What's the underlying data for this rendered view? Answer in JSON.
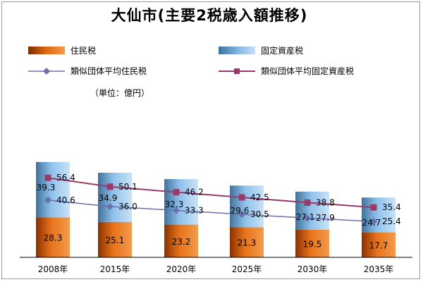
{
  "title": "大仙市(主要2税歳入額推移)",
  "unit_label": "（単位：億円）",
  "legend": {
    "resident_tax": "住民税",
    "fixed_asset_tax": "固定資産税",
    "similar_resident": "類似団体平均住民税",
    "similar_fixed": "類似団体平均固定資産税"
  },
  "colors": {
    "resident_bar": "#e8731a",
    "fixed_bar": "#8fc1ea",
    "similar_resident_line": "#6a6fae",
    "similar_fixed_line": "#983a6a"
  },
  "chart_data": {
    "type": "bar",
    "categories": [
      "2008年",
      "2015年",
      "2020年",
      "2025年",
      "2030年",
      "2035年"
    ],
    "stacked": true,
    "series": [
      {
        "name": "住民税",
        "kind": "bar",
        "values": [
          28.3,
          25.1,
          23.2,
          21.3,
          19.5,
          17.7
        ]
      },
      {
        "name": "固定資産税",
        "kind": "bar",
        "values": [
          39.3,
          34.9,
          32.3,
          29.6,
          27.1,
          24.7
        ]
      },
      {
        "name": "類似団体平均住民税",
        "kind": "line",
        "marker": "diamond",
        "values": [
          40.6,
          36.0,
          33.3,
          30.5,
          27.9,
          25.4
        ]
      },
      {
        "name": "類似団体平均固定資産税",
        "kind": "line",
        "marker": "square",
        "values": [
          56.4,
          50.1,
          46.2,
          42.5,
          38.8,
          35.4
        ]
      }
    ],
    "ylim": [
      0,
      70
    ],
    "grid": false,
    "legend_position": "top"
  }
}
